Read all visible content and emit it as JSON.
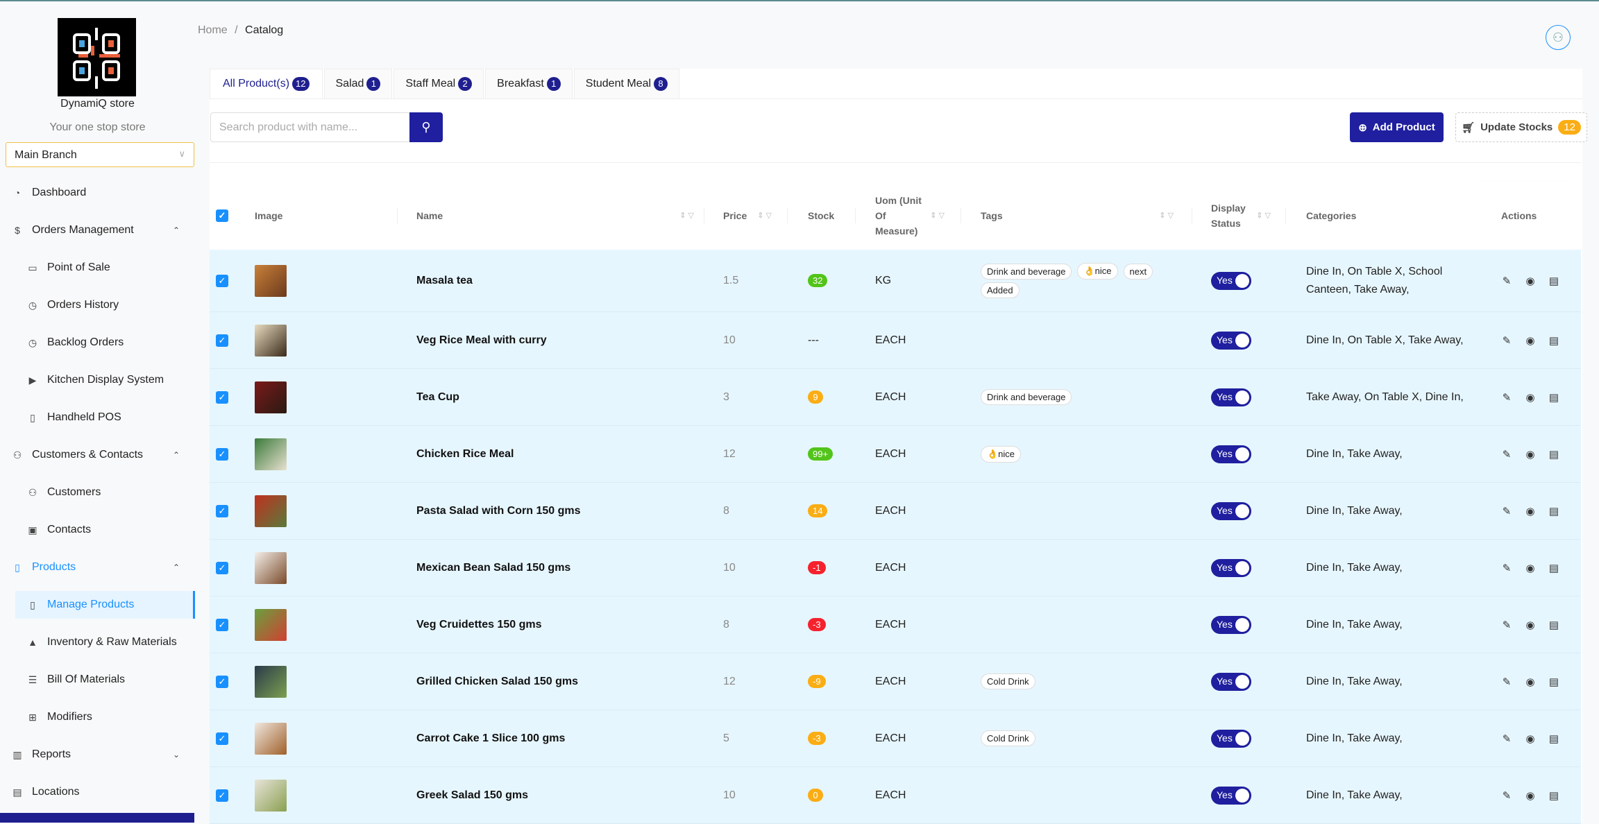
{
  "sidebar": {
    "store_name": "DynamiQ store",
    "tagline": "Your one stop store",
    "branch": "Main Branch",
    "items": [
      {
        "label": "Dashboard",
        "icon": "pie-chart-icon",
        "glyph": "◔",
        "level": 1
      },
      {
        "label": "Orders Management",
        "icon": "dollar-circle-icon",
        "glyph": "$",
        "level": 1,
        "caret": "^"
      },
      {
        "label": "Point of Sale",
        "icon": "desktop-icon",
        "glyph": "▭",
        "level": 2
      },
      {
        "label": "Orders History",
        "icon": "clock-icon",
        "glyph": "◷",
        "level": 2
      },
      {
        "label": "Backlog Orders",
        "icon": "clock-icon",
        "glyph": "◷",
        "level": 2
      },
      {
        "label": "Kitchen Display System",
        "icon": "play-square-icon",
        "glyph": "▶",
        "level": 2
      },
      {
        "label": "Handheld POS",
        "icon": "mobile-icon",
        "glyph": "▯",
        "level": 2
      },
      {
        "label": "Customers & Contacts",
        "icon": "user-switch-icon",
        "glyph": "⚇",
        "level": 1,
        "caret": "^"
      },
      {
        "label": "Customers",
        "icon": "user-icon",
        "glyph": "⚇",
        "level": 2
      },
      {
        "label": "Contacts",
        "icon": "contacts-icon",
        "glyph": "▣",
        "level": 2
      },
      {
        "label": "Products",
        "icon": "book-icon",
        "glyph": "▯",
        "level": 1,
        "caret": "^",
        "active": true
      },
      {
        "label": "Manage Products",
        "icon": "book-icon",
        "glyph": "▯",
        "level": 2,
        "selected": true
      },
      {
        "label": "Inventory & Raw Materials",
        "icon": "gold-icon",
        "glyph": "▲",
        "level": 2
      },
      {
        "label": "Bill Of Materials",
        "icon": "list-icon",
        "glyph": "☰",
        "level": 2
      },
      {
        "label": "Modifiers",
        "icon": "appstore-add-icon",
        "glyph": "⊞",
        "level": 2
      },
      {
        "label": "Reports",
        "icon": "bar-chart-icon",
        "glyph": "▥",
        "level": 1,
        "caret": "v"
      },
      {
        "label": "Locations",
        "icon": "shop-icon",
        "glyph": "▤",
        "level": 1
      }
    ]
  },
  "breadcrumb": {
    "home": "Home",
    "sep": "/",
    "current": "Catalog"
  },
  "tabs": [
    {
      "label": "All Product(s)",
      "count": "12",
      "active": true
    },
    {
      "label": "Salad",
      "count": "1"
    },
    {
      "label": "Staff Meal",
      "count": "2"
    },
    {
      "label": "Breakfast",
      "count": "1"
    },
    {
      "label": "Student Meal",
      "count": "8"
    }
  ],
  "search": {
    "placeholder": "Search product with name..."
  },
  "toolbar": {
    "add_label": "Add Product",
    "update_label": "Update Stocks",
    "update_count": "12"
  },
  "table": {
    "headers": {
      "image": "Image",
      "name": "Name",
      "price": "Price",
      "stock": "Stock",
      "uom": "Uom (Unit Of Measure)",
      "tags": "Tags",
      "display": "Display Status",
      "categories": "Categories",
      "actions": "Actions"
    },
    "rows": [
      {
        "name": "Masala tea",
        "price": "1.5",
        "stock": "32",
        "stock_color": "#52c41a",
        "uom": "KG",
        "tags": [
          "Drink and beverage",
          "👌nice",
          "next",
          "Added"
        ],
        "display": "Yes",
        "categories": "Dine In, On Table X, School Canteen, Take Away,",
        "img": [
          "#c9803a",
          "#6b3a1c"
        ]
      },
      {
        "name": "Veg Rice Meal with curry",
        "price": "10",
        "stock": "---",
        "stock_color": "",
        "uom": "EACH",
        "tags": [],
        "display": "Yes",
        "categories": "Dine In, On Table X, Take Away,",
        "img": [
          "#e8dcc0",
          "#3a2a1a"
        ]
      },
      {
        "name": "Tea Cup",
        "price": "3",
        "stock": "9",
        "stock_color": "#faad14",
        "uom": "EACH",
        "tags": [
          "Drink and beverage"
        ],
        "display": "Yes",
        "categories": "Take Away, On Table X, Dine In,",
        "img": [
          "#7a1a1a",
          "#2a1a12"
        ]
      },
      {
        "name": "Chicken Rice Meal",
        "price": "12",
        "stock": "99+",
        "stock_color": "#52c41a",
        "uom": "EACH",
        "tags": [
          "👌nice"
        ],
        "display": "Yes",
        "categories": "Dine In, Take Away,",
        "img": [
          "#3a7a3a",
          "#e8e0d0"
        ]
      },
      {
        "name": "Pasta Salad with Corn 150 gms",
        "price": "8",
        "stock": "14",
        "stock_color": "#faad14",
        "uom": "EACH",
        "tags": [],
        "display": "Yes",
        "categories": "Dine In, Take Away,",
        "img": [
          "#c03020",
          "#5a7a3a"
        ]
      },
      {
        "name": "Mexican Bean Salad 150 gms",
        "price": "10",
        "stock": "-1",
        "stock_color": "#f5222d",
        "uom": "EACH",
        "tags": [],
        "display": "Yes",
        "categories": "Dine In, Take Away,",
        "img": [
          "#f4f0ea",
          "#7a4a2a"
        ]
      },
      {
        "name": "Veg Cruidettes 150 gms",
        "price": "8",
        "stock": "-3",
        "stock_color": "#f5222d",
        "uom": "EACH",
        "tags": [],
        "display": "Yes",
        "categories": "Dine In, Take Away,",
        "img": [
          "#6aa040",
          "#d04030"
        ]
      },
      {
        "name": "Grilled Chicken Salad 150 gms",
        "price": "12",
        "stock": "-9",
        "stock_color": "#faad14",
        "uom": "EACH",
        "tags": [
          "Cold Drink"
        ],
        "display": "Yes",
        "categories": "Dine In, Take Away,",
        "img": [
          "#2a3a4a",
          "#7aa050"
        ]
      },
      {
        "name": "Carrot Cake 1 Slice 100 gms",
        "price": "5",
        "stock": "-3",
        "stock_color": "#faad14",
        "uom": "EACH",
        "tags": [
          "Cold Drink"
        ],
        "display": "Yes",
        "categories": "Dine In, Take Away,",
        "img": [
          "#f0e8e0",
          "#a0602a"
        ]
      },
      {
        "name": "Greek Salad 150 gms",
        "price": "10",
        "stock": "0",
        "stock_color": "#faad14",
        "uom": "EACH",
        "tags": [],
        "display": "Yes",
        "categories": "Dine In, Take Away,",
        "img": [
          "#e8e4da",
          "#8aa050"
        ]
      }
    ]
  },
  "colors": {
    "primary": "#1f1f9f",
    "link": "#1890ff",
    "row_bg": "#e6f6fe"
  }
}
